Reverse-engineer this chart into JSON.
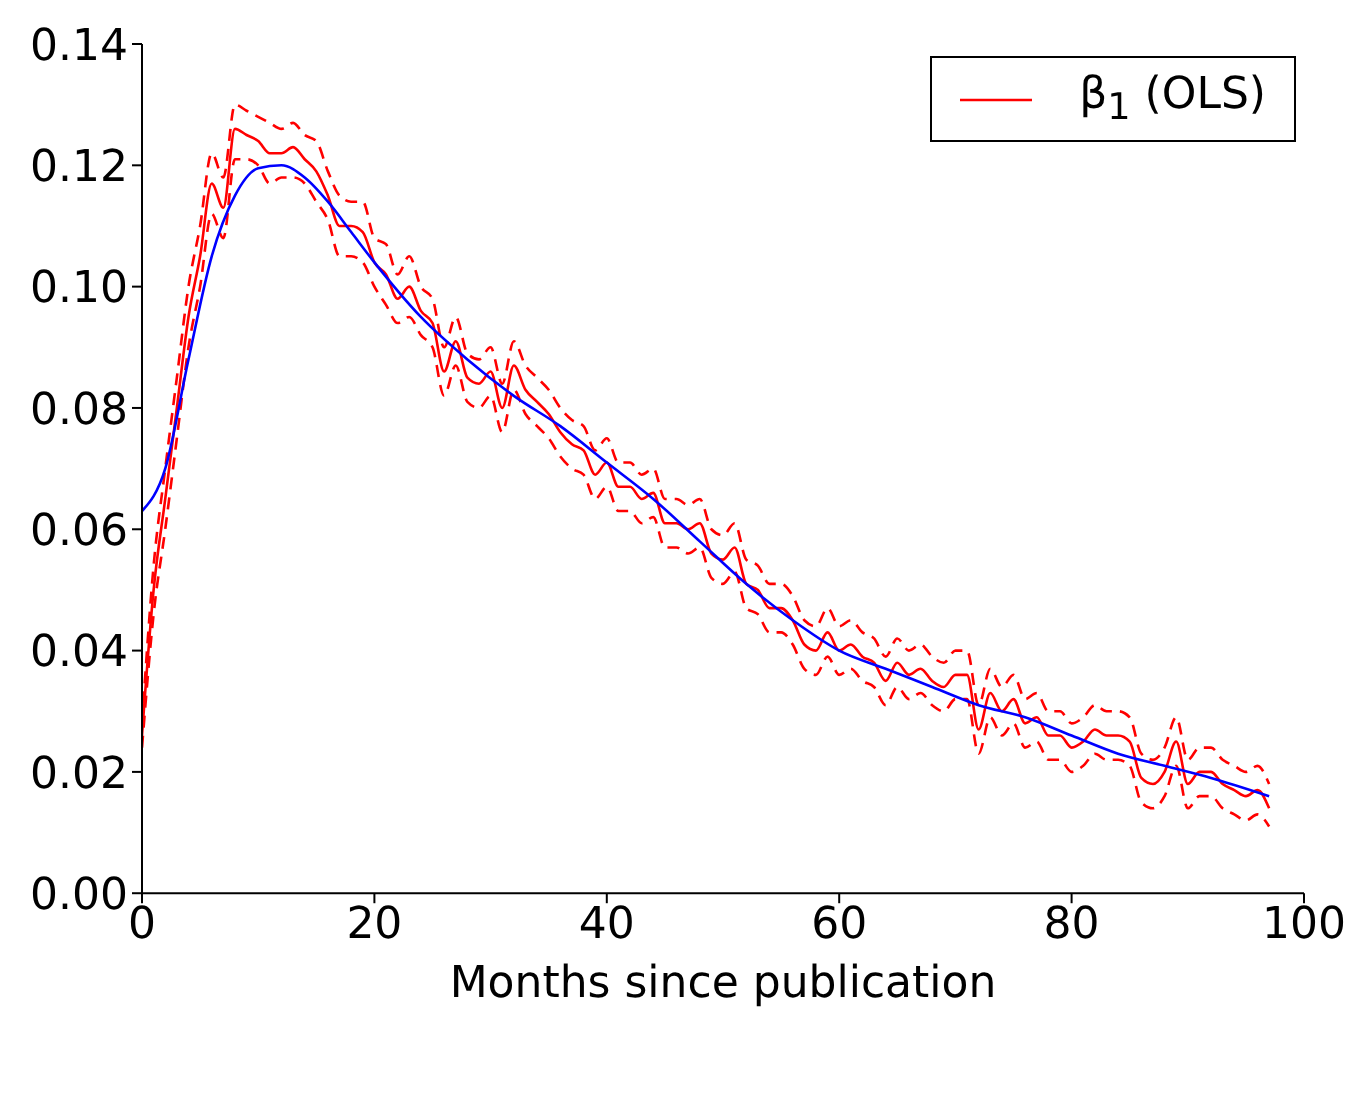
{
  "chart_data": {
    "type": "line",
    "xlabel": "Months since publication",
    "xlim": [
      0,
      100
    ],
    "xticks": [
      0,
      20,
      40,
      60,
      80,
      100
    ],
    "ylim": [
      0,
      0.14
    ],
    "yticks": [
      {
        "value": 0,
        "label": "0.00"
      },
      {
        "value": 0.02,
        "label": "0.02"
      },
      {
        "value": 0.04,
        "label": "0.04"
      },
      {
        "value": 0.06,
        "label": "0.06"
      },
      {
        "value": 0.08,
        "label": "0.08"
      },
      {
        "value": 0.1,
        "label": "0.10"
      },
      {
        "value": 0.12,
        "label": "0.12"
      },
      {
        "value": 0.14,
        "label": "0.14"
      }
    ],
    "legend": "top right",
    "marker": "none",
    "series": [
      {
        "name": "β$_{1}$ (OLS)",
        "color": "#ff0000",
        "line_style": "solid",
        "x": [
          0,
          1,
          2,
          3,
          4,
          5,
          6,
          7,
          8,
          9,
          10,
          11,
          12,
          13,
          14,
          15,
          16,
          17,
          18,
          19,
          20,
          21,
          22,
          23,
          24,
          25,
          26,
          27,
          28,
          29,
          30,
          31,
          32,
          33,
          34,
          35,
          36,
          37,
          38,
          39,
          40,
          41,
          42,
          43,
          44,
          45,
          46,
          47,
          48,
          49,
          50,
          51,
          52,
          53,
          54,
          55,
          56,
          57,
          58,
          59,
          60,
          61,
          62,
          63,
          64,
          65,
          66,
          67,
          68,
          69,
          70,
          71,
          72,
          73,
          74,
          75,
          76,
          77,
          78,
          79,
          80,
          81,
          82,
          83,
          84,
          85,
          86,
          87,
          88,
          89,
          90,
          91,
          92,
          93,
          94,
          95,
          96,
          97
        ],
        "values": [
          0.026,
          0.05,
          0.065,
          0.08,
          0.095,
          0.105,
          0.117,
          0.113,
          0.126,
          0.125,
          0.124,
          0.122,
          0.122,
          0.123,
          0.121,
          0.119,
          0.115,
          0.11,
          0.11,
          0.109,
          0.104,
          0.102,
          0.098,
          0.1,
          0.096,
          0.094,
          0.086,
          0.091,
          0.085,
          0.084,
          0.086,
          0.08,
          0.087,
          0.083,
          0.081,
          0.079,
          0.076,
          0.074,
          0.073,
          0.069,
          0.071,
          0.067,
          0.067,
          0.065,
          0.066,
          0.061,
          0.061,
          0.06,
          0.061,
          0.056,
          0.055,
          0.057,
          0.051,
          0.05,
          0.047,
          0.047,
          0.045,
          0.041,
          0.04,
          0.043,
          0.04,
          0.041,
          0.039,
          0.038,
          0.035,
          0.038,
          0.036,
          0.037,
          0.035,
          0.034,
          0.036,
          0.036,
          0.027,
          0.033,
          0.03,
          0.032,
          0.028,
          0.029,
          0.026,
          0.026,
          0.024,
          0.025,
          0.027,
          0.026,
          0.026,
          0.025,
          0.019,
          0.018,
          0.02,
          0.025,
          0.018,
          0.02,
          0.02,
          0.018,
          0.017,
          0.016,
          0.017,
          0.014
        ]
      },
      {
        "color": "#ff0000",
        "line_style": "dashed",
        "x": [
          0,
          1,
          2,
          3,
          4,
          5,
          6,
          7,
          8,
          9,
          10,
          11,
          12,
          13,
          14,
          15,
          16,
          17,
          18,
          19,
          20,
          21,
          22,
          23,
          24,
          25,
          26,
          27,
          28,
          29,
          30,
          31,
          32,
          33,
          34,
          35,
          36,
          37,
          38,
          39,
          40,
          41,
          42,
          43,
          44,
          45,
          46,
          47,
          48,
          49,
          50,
          51,
          52,
          53,
          54,
          55,
          56,
          57,
          58,
          59,
          60,
          61,
          62,
          63,
          64,
          65,
          66,
          67,
          68,
          69,
          70,
          71,
          72,
          73,
          74,
          75,
          76,
          77,
          78,
          79,
          80,
          81,
          82,
          83,
          84,
          85,
          86,
          87,
          88,
          89,
          90,
          91,
          92,
          93,
          94,
          95,
          96,
          97
        ],
        "values": [
          0.024,
          0.046,
          0.06,
          0.075,
          0.09,
          0.1,
          0.112,
          0.108,
          0.121,
          0.121,
          0.12,
          0.117,
          0.118,
          0.118,
          0.117,
          0.114,
          0.111,
          0.105,
          0.105,
          0.104,
          0.1,
          0.097,
          0.094,
          0.095,
          0.092,
          0.09,
          0.082,
          0.087,
          0.081,
          0.08,
          0.082,
          0.076,
          0.083,
          0.079,
          0.077,
          0.075,
          0.072,
          0.07,
          0.069,
          0.065,
          0.067,
          0.063,
          0.063,
          0.061,
          0.062,
          0.057,
          0.057,
          0.056,
          0.057,
          0.052,
          0.051,
          0.053,
          0.047,
          0.046,
          0.043,
          0.043,
          0.041,
          0.037,
          0.036,
          0.039,
          0.036,
          0.037,
          0.035,
          0.034,
          0.031,
          0.034,
          0.032,
          0.033,
          0.031,
          0.03,
          0.032,
          0.032,
          0.023,
          0.029,
          0.026,
          0.028,
          0.024,
          0.025,
          0.022,
          0.022,
          0.02,
          0.021,
          0.023,
          0.022,
          0.022,
          0.021,
          0.015,
          0.014,
          0.016,
          0.021,
          0.014,
          0.016,
          0.016,
          0.014,
          0.013,
          0.012,
          0.013,
          0.011
        ]
      },
      {
        "color": "#ff0000",
        "line_style": "dashed",
        "x": [
          0,
          1,
          2,
          3,
          4,
          5,
          6,
          7,
          8,
          9,
          10,
          11,
          12,
          13,
          14,
          15,
          16,
          17,
          18,
          19,
          20,
          21,
          22,
          23,
          24,
          25,
          26,
          27,
          28,
          29,
          30,
          31,
          32,
          33,
          34,
          35,
          36,
          37,
          38,
          39,
          40,
          41,
          42,
          43,
          44,
          45,
          46,
          47,
          48,
          49,
          50,
          51,
          52,
          53,
          54,
          55,
          56,
          57,
          58,
          59,
          60,
          61,
          62,
          63,
          64,
          65,
          66,
          67,
          68,
          69,
          70,
          71,
          72,
          73,
          74,
          75,
          76,
          77,
          78,
          79,
          80,
          81,
          82,
          83,
          84,
          85,
          86,
          87,
          88,
          89,
          90,
          91,
          92,
          93,
          94,
          95,
          96,
          97
        ],
        "values": [
          0.028,
          0.054,
          0.07,
          0.085,
          0.1,
          0.11,
          0.122,
          0.118,
          0.13,
          0.129,
          0.128,
          0.127,
          0.126,
          0.127,
          0.125,
          0.124,
          0.119,
          0.115,
          0.114,
          0.114,
          0.108,
          0.107,
          0.102,
          0.105,
          0.1,
          0.098,
          0.09,
          0.095,
          0.089,
          0.088,
          0.09,
          0.084,
          0.091,
          0.087,
          0.085,
          0.083,
          0.08,
          0.078,
          0.077,
          0.073,
          0.075,
          0.071,
          0.071,
          0.069,
          0.07,
          0.065,
          0.065,
          0.064,
          0.065,
          0.06,
          0.059,
          0.061,
          0.055,
          0.054,
          0.051,
          0.051,
          0.049,
          0.045,
          0.044,
          0.047,
          0.044,
          0.045,
          0.043,
          0.042,
          0.039,
          0.042,
          0.04,
          0.041,
          0.039,
          0.038,
          0.04,
          0.04,
          0.031,
          0.037,
          0.034,
          0.036,
          0.032,
          0.033,
          0.03,
          0.03,
          0.028,
          0.029,
          0.031,
          0.03,
          0.03,
          0.029,
          0.023,
          0.022,
          0.024,
          0.029,
          0.022,
          0.024,
          0.024,
          0.022,
          0.021,
          0.02,
          0.021,
          0.018
        ]
      },
      {
        "type": "line",
        "color": "#0000ff",
        "line_style": "solid",
        "x": [
          0,
          2,
          4,
          6,
          8,
          10,
          12,
          14,
          16,
          18,
          20,
          24,
          28,
          32,
          36,
          40,
          44,
          48,
          52,
          56,
          60,
          64,
          68,
          72,
          76,
          80,
          84,
          88,
          92,
          97
        ],
        "values": [
          0.063,
          0.07,
          0.088,
          0.105,
          0.115,
          0.1195,
          0.12,
          0.118,
          0.114,
          0.109,
          0.104,
          0.095,
          0.088,
          0.082,
          0.077,
          0.071,
          0.065,
          0.058,
          0.051,
          0.045,
          0.04,
          0.037,
          0.034,
          0.031,
          0.029,
          0.026,
          0.023,
          0.021,
          0.019,
          0.016
        ]
      }
    ]
  }
}
